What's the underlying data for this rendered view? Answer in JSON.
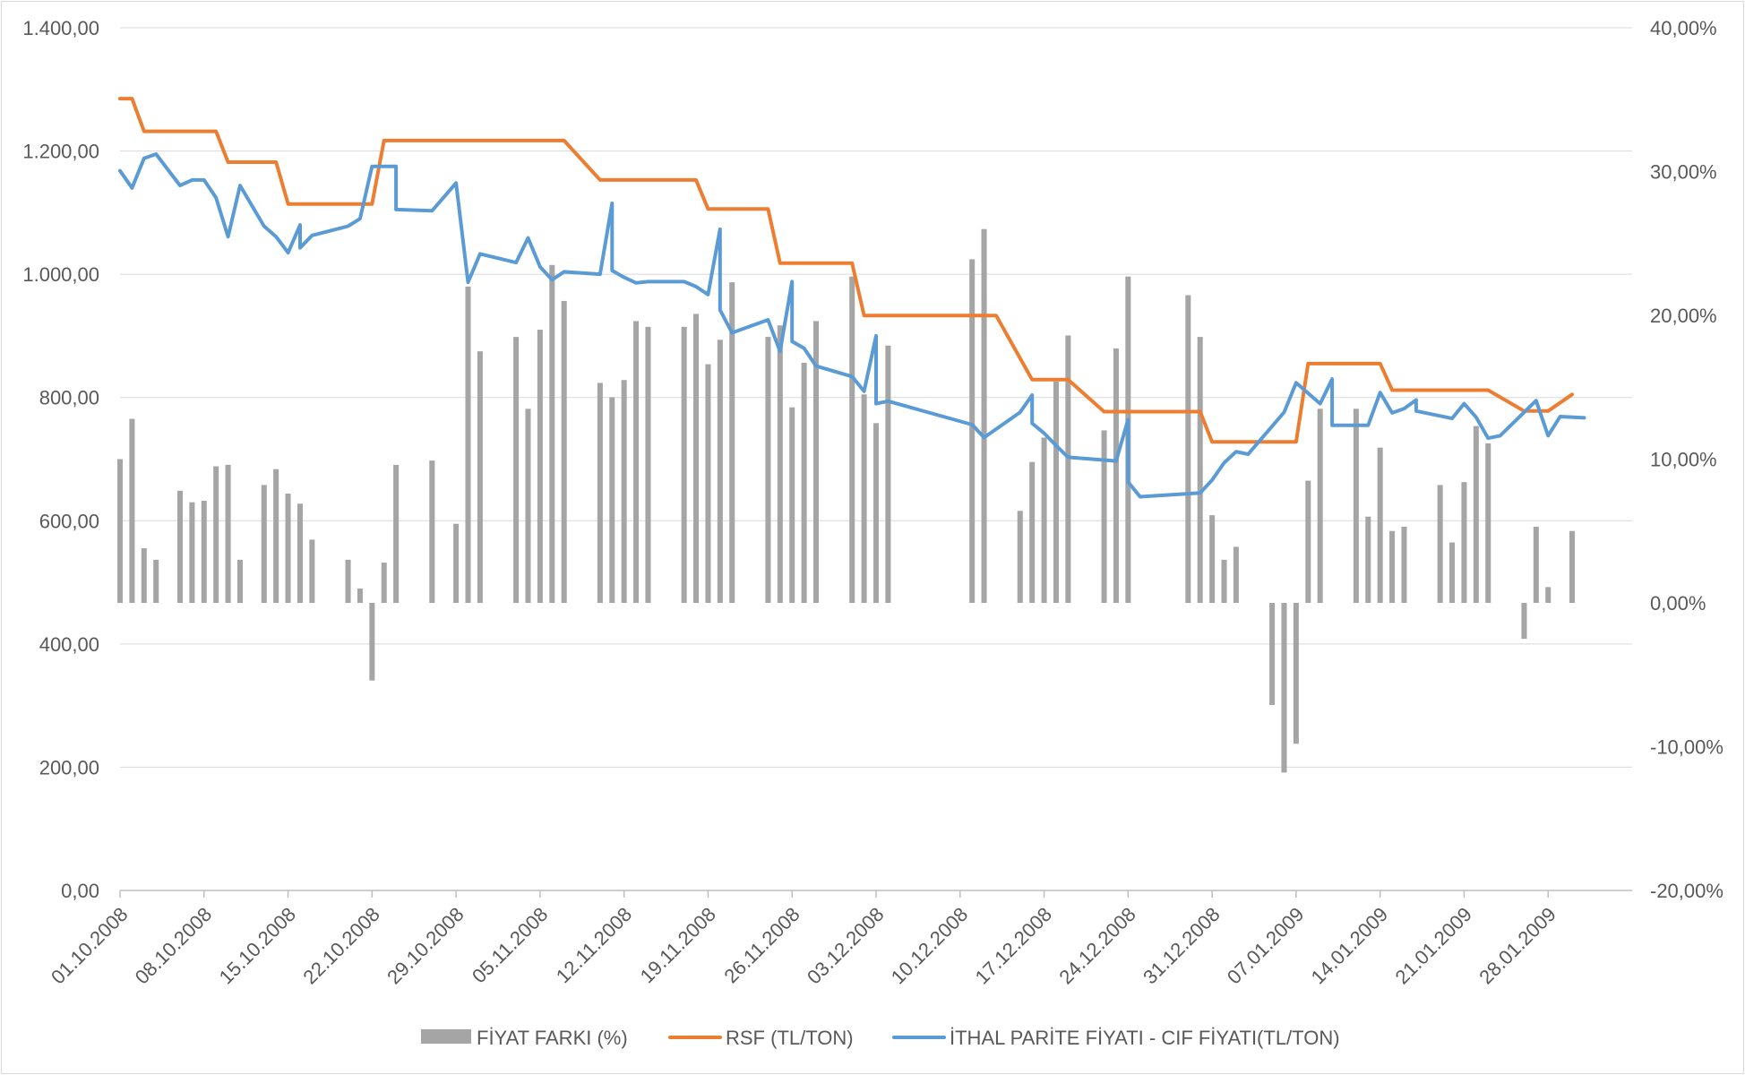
{
  "chart_data": {
    "type": "bar+line",
    "title": "",
    "xlabel": "",
    "ylabel": "",
    "y_left": {
      "min": 0,
      "max": 1400,
      "step": 200,
      "tick_labels": [
        "0,00",
        "200,00",
        "400,00",
        "600,00",
        "800,00",
        "1.000,00",
        "1.200,00",
        "1.400,00"
      ]
    },
    "y_right": {
      "min": -20,
      "max": 40,
      "step": 10,
      "tick_labels": [
        "-20,00%",
        "-10,00%",
        "0,00%",
        "10,00%",
        "20,00%",
        "30,00%",
        "40,00%"
      ]
    },
    "x_axis": {
      "start": "2008-10-01",
      "end": "2009-02-04",
      "tick_dates": [
        "2008-10-01",
        "2008-10-08",
        "2008-10-15",
        "2008-10-22",
        "2008-10-29",
        "2008-11-05",
        "2008-11-12",
        "2008-11-19",
        "2008-11-26",
        "2008-12-03",
        "2008-12-10",
        "2008-12-17",
        "2008-12-24",
        "2008-12-31",
        "2009-01-07",
        "2009-01-14",
        "2009-01-21",
        "2009-01-28"
      ],
      "tick_labels": [
        "01.10.2008",
        "08.10.2008",
        "15.10.2008",
        "22.10.2008",
        "29.10.2008",
        "05.11.2008",
        "12.11.2008",
        "19.11.2008",
        "26.11.2008",
        "03.12.2008",
        "10.12.2008",
        "17.12.2008",
        "24.12.2008",
        "31.12.2008",
        "07.01.2009",
        "14.01.2009",
        "21.01.2009",
        "28.01.2009"
      ]
    },
    "grid": true,
    "legend_position": "bottom",
    "series": [
      {
        "name": "FİYAT FARKI (%)",
        "kind": "bar",
        "axis": "right",
        "color": "#a5a5a5",
        "points": [
          [
            "2008-10-01",
            10.0
          ],
          [
            "2008-10-02",
            12.8
          ],
          [
            "2008-10-03",
            3.8
          ],
          [
            "2008-10-04",
            3.0
          ],
          [
            "2008-10-06",
            7.8
          ],
          [
            "2008-10-07",
            7.0
          ],
          [
            "2008-10-08",
            7.1
          ],
          [
            "2008-10-09",
            9.5
          ],
          [
            "2008-10-10",
            9.6
          ],
          [
            "2008-10-11",
            3.0
          ],
          [
            "2008-10-13",
            8.2
          ],
          [
            "2008-10-14",
            9.3
          ],
          [
            "2008-10-15",
            7.6
          ],
          [
            "2008-10-16",
            6.9
          ],
          [
            "2008-10-17",
            4.4
          ],
          [
            "2008-10-20",
            3.0
          ],
          [
            "2008-10-21",
            1.0
          ],
          [
            "2008-10-22",
            -5.4
          ],
          [
            "2008-10-23",
            2.8
          ],
          [
            "2008-10-24",
            9.6
          ],
          [
            "2008-10-27",
            9.9
          ],
          [
            "2008-10-29",
            5.5
          ],
          [
            "2008-10-30",
            22.0
          ],
          [
            "2008-10-31",
            17.5
          ],
          [
            "2008-11-03",
            18.5
          ],
          [
            "2008-11-04",
            13.5
          ],
          [
            "2008-11-05",
            19.0
          ],
          [
            "2008-11-06",
            23.5
          ],
          [
            "2008-11-07",
            21.0
          ],
          [
            "2008-11-10",
            15.3
          ],
          [
            "2008-11-11",
            14.3
          ],
          [
            "2008-11-12",
            15.5
          ],
          [
            "2008-11-13",
            19.6
          ],
          [
            "2008-11-14",
            19.2
          ],
          [
            "2008-11-17",
            19.2
          ],
          [
            "2008-11-18",
            20.1
          ],
          [
            "2008-11-19",
            16.6
          ],
          [
            "2008-11-20",
            18.3
          ],
          [
            "2008-11-21",
            22.3
          ],
          [
            "2008-11-24",
            18.5
          ],
          [
            "2008-11-25",
            19.3
          ],
          [
            "2008-11-26",
            13.6
          ],
          [
            "2008-11-27",
            16.7
          ],
          [
            "2008-11-28",
            19.6
          ],
          [
            "2008-12-01",
            22.7
          ],
          [
            "2008-12-02",
            14.5
          ],
          [
            "2008-12-03",
            12.5
          ],
          [
            "2008-12-04",
            17.9
          ],
          [
            "2008-12-11",
            23.9
          ],
          [
            "2008-12-12",
            26.0
          ],
          [
            "2008-12-15",
            6.4
          ],
          [
            "2008-12-16",
            9.8
          ],
          [
            "2008-12-17",
            11.5
          ],
          [
            "2008-12-18",
            15.4
          ],
          [
            "2008-12-19",
            18.6
          ],
          [
            "2008-12-22",
            12.0
          ],
          [
            "2008-12-23",
            17.7
          ],
          [
            "2008-12-24",
            22.7
          ],
          [
            "2008-12-29",
            21.4
          ],
          [
            "2008-12-30",
            18.5
          ],
          [
            "2008-12-31",
            6.1
          ],
          [
            "2009-01-01",
            3.0
          ],
          [
            "2009-01-02",
            3.9
          ],
          [
            "2009-01-05",
            -7.1
          ],
          [
            "2009-01-06",
            -11.8
          ],
          [
            "2009-01-07",
            -9.8
          ],
          [
            "2009-01-08",
            8.5
          ],
          [
            "2009-01-09",
            13.5
          ],
          [
            "2009-01-12",
            13.5
          ],
          [
            "2009-01-13",
            6.0
          ],
          [
            "2009-01-14",
            10.8
          ],
          [
            "2009-01-15",
            5.0
          ],
          [
            "2009-01-16",
            5.3
          ],
          [
            "2009-01-19",
            8.2
          ],
          [
            "2009-01-20",
            4.2
          ],
          [
            "2009-01-21",
            8.4
          ],
          [
            "2009-01-22",
            12.3
          ],
          [
            "2009-01-23",
            11.1
          ],
          [
            "2009-01-26",
            -2.5
          ],
          [
            "2009-01-27",
            5.3
          ],
          [
            "2009-01-28",
            1.1
          ],
          [
            "2009-01-30",
            5.0
          ]
        ]
      },
      {
        "name": "RSF (TL/TON)",
        "kind": "line",
        "axis": "left",
        "color": "#ed7d31",
        "points": [
          [
            "2008-10-01",
            1285
          ],
          [
            "2008-10-02",
            1285
          ],
          [
            "2008-10-03",
            1232
          ],
          [
            "2008-10-09",
            1232
          ],
          [
            "2008-10-10",
            1182
          ],
          [
            "2008-10-14",
            1182
          ],
          [
            "2008-10-15",
            1114
          ],
          [
            "2008-10-22",
            1114
          ],
          [
            "2008-10-23",
            1217
          ],
          [
            "2008-11-07",
            1217
          ],
          [
            "2008-11-10",
            1153
          ],
          [
            "2008-11-18",
            1153
          ],
          [
            "2008-11-19",
            1106
          ],
          [
            "2008-11-24",
            1106
          ],
          [
            "2008-11-25",
            1018
          ],
          [
            "2008-12-01",
            1018
          ],
          [
            "2008-12-02",
            933
          ],
          [
            "2008-12-13",
            933
          ],
          [
            "2008-12-16",
            829
          ],
          [
            "2008-12-19",
            829
          ],
          [
            "2008-12-22",
            777
          ],
          [
            "2008-12-30",
            777
          ],
          [
            "2008-12-31",
            728
          ],
          [
            "2009-01-07",
            728
          ],
          [
            "2009-01-08",
            855
          ],
          [
            "2009-01-14",
            855
          ],
          [
            "2009-01-15",
            812
          ],
          [
            "2009-01-23",
            812
          ],
          [
            "2009-01-26",
            778
          ],
          [
            "2009-01-28",
            778
          ],
          [
            "2009-01-30",
            805
          ]
        ]
      },
      {
        "name": "İTHAL PARİTE FİYATI - CIF FİYATI(TL/TON)",
        "kind": "line",
        "axis": "left",
        "color": "#5b9bd5",
        "points": [
          [
            "2008-10-01",
            1168
          ],
          [
            "2008-10-02",
            1140
          ],
          [
            "2008-10-03",
            1188
          ],
          [
            "2008-10-04",
            1195
          ],
          [
            "2008-10-06",
            1144
          ],
          [
            "2008-10-07",
            1153
          ],
          [
            "2008-10-08",
            1153
          ],
          [
            "2008-10-09",
            1124
          ],
          [
            "2008-10-10",
            1061
          ],
          [
            "2008-10-11",
            1144
          ],
          [
            "2008-10-13",
            1078
          ],
          [
            "2008-10-14",
            1061
          ],
          [
            "2008-10-15",
            1035
          ],
          [
            "2008-10-16",
            1080
          ],
          [
            "2008-10-16",
            1043
          ],
          [
            "2008-10-17",
            1063
          ],
          [
            "2008-10-20",
            1078
          ],
          [
            "2008-10-21",
            1090
          ],
          [
            "2008-10-22",
            1175
          ],
          [
            "2008-10-23",
            1175
          ],
          [
            "2008-10-24",
            1175
          ],
          [
            "2008-10-24",
            1105
          ],
          [
            "2008-10-27",
            1103
          ],
          [
            "2008-10-29",
            1148
          ],
          [
            "2008-10-30",
            987
          ],
          [
            "2008-10-31",
            1033
          ],
          [
            "2008-11-03",
            1019
          ],
          [
            "2008-11-04",
            1059
          ],
          [
            "2008-11-05",
            1012
          ],
          [
            "2008-11-06",
            991
          ],
          [
            "2008-11-07",
            1004
          ],
          [
            "2008-11-10",
            1000
          ],
          [
            "2008-11-11",
            1115
          ],
          [
            "2008-11-11",
            1006
          ],
          [
            "2008-11-12",
            995
          ],
          [
            "2008-11-13",
            986
          ],
          [
            "2008-11-14",
            988
          ],
          [
            "2008-11-17",
            988
          ],
          [
            "2008-11-18",
            980
          ],
          [
            "2008-11-19",
            967
          ],
          [
            "2008-11-20",
            1073
          ],
          [
            "2008-11-20",
            942
          ],
          [
            "2008-11-21",
            905
          ],
          [
            "2008-11-24",
            926
          ],
          [
            "2008-11-25",
            875
          ],
          [
            "2008-11-26",
            988
          ],
          [
            "2008-11-26",
            891
          ],
          [
            "2008-11-27",
            880
          ],
          [
            "2008-11-28",
            851
          ],
          [
            "2008-12-01",
            834
          ],
          [
            "2008-12-02",
            810
          ],
          [
            "2008-12-03",
            900
          ],
          [
            "2008-12-03",
            790
          ],
          [
            "2008-12-04",
            794
          ],
          [
            "2008-12-11",
            756
          ],
          [
            "2008-12-12",
            735
          ],
          [
            "2008-12-15",
            776
          ],
          [
            "2008-12-16",
            804
          ],
          [
            "2008-12-16",
            758
          ],
          [
            "2008-12-17",
            742
          ],
          [
            "2008-12-18",
            722
          ],
          [
            "2008-12-19",
            703
          ],
          [
            "2008-12-23",
            697
          ],
          [
            "2008-12-24",
            764
          ],
          [
            "2008-12-24",
            663
          ],
          [
            "2008-12-25",
            639
          ],
          [
            "2008-12-30",
            645
          ],
          [
            "2008-12-31",
            666
          ],
          [
            "2009-01-01",
            694
          ],
          [
            "2009-01-02",
            712
          ],
          [
            "2009-01-03",
            708
          ],
          [
            "2009-01-06",
            776
          ],
          [
            "2009-01-07",
            824
          ],
          [
            "2009-01-09",
            790
          ],
          [
            "2009-01-10",
            830
          ],
          [
            "2009-01-10",
            755
          ],
          [
            "2009-01-13",
            755
          ],
          [
            "2009-01-14",
            808
          ],
          [
            "2009-01-15",
            775
          ],
          [
            "2009-01-16",
            782
          ],
          [
            "2009-01-17",
            796
          ],
          [
            "2009-01-17",
            778
          ],
          [
            "2009-01-20",
            766
          ],
          [
            "2009-01-21",
            790
          ],
          [
            "2009-01-22",
            768
          ],
          [
            "2009-01-23",
            734
          ],
          [
            "2009-01-24",
            738
          ],
          [
            "2009-01-27",
            795
          ],
          [
            "2009-01-28",
            738
          ],
          [
            "2009-01-29",
            769
          ],
          [
            "2009-01-31",
            767
          ]
        ]
      }
    ]
  }
}
